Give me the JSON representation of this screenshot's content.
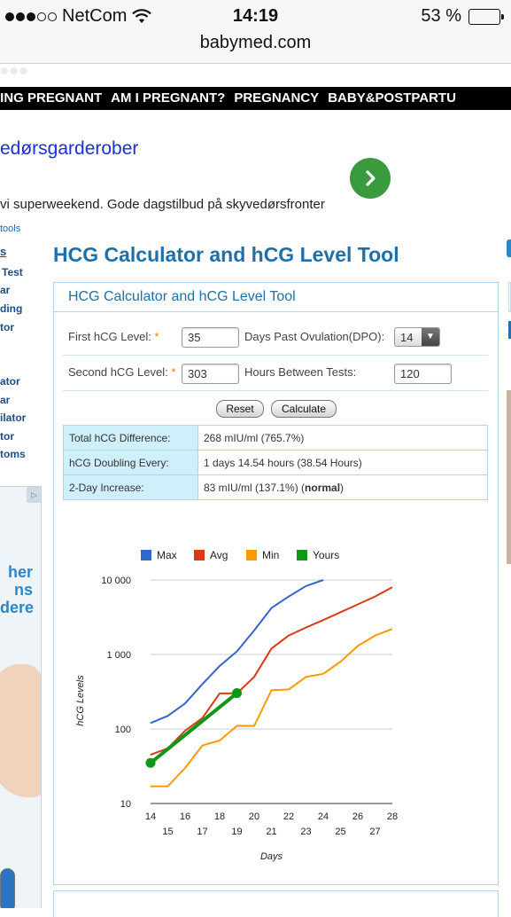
{
  "status": {
    "carrier": "NetCom",
    "time": "14:19",
    "battery": "53 %"
  },
  "browser": {
    "url": "babymed.com"
  },
  "nav": {
    "items": [
      "TING PREGNANT",
      "AM I PREGNANT?",
      "PREGNANCY",
      "BABY&POSTPARTU"
    ]
  },
  "ad": {
    "title": "edørsgarderober",
    "text": "vi superweekend. Gode dagstilbud på skyvedørsfronter",
    "arrow_icon": "chevron-right-icon"
  },
  "tools_link": "tools",
  "sidebar": {
    "head": "s",
    "items": [
      "Test",
      "ar",
      "ding",
      "tor",
      "ator",
      "ar",
      "ilator",
      "tor",
      "toms"
    ]
  },
  "left_ad": {
    "lines": [
      "her",
      "ns",
      "dere"
    ]
  },
  "page": {
    "title": "HCG Calculator and hCG Level Tool"
  },
  "calculator": {
    "header": "HCG Calculator and hCG Level Tool",
    "first_label": "First hCG Level:",
    "first_value": "35",
    "dpo_label": "Days Past Ovulation(DPO):",
    "dpo_value": "14",
    "second_label": "Second hCG Level:",
    "second_value": "303",
    "hours_label": "Hours Between Tests:",
    "hours_value": "120",
    "required_mark": "*",
    "reset_label": "Reset",
    "calculate_label": "Calculate"
  },
  "results": {
    "rows": [
      {
        "label": "Total hCG Difference:",
        "value": "268 mIU/ml (765.7%)"
      },
      {
        "label": "hCG Doubling Every:",
        "value": "1 days 14.54 hours (38.54 Hours)"
      },
      {
        "label": "2-Day Increase:",
        "value_prefix": "83 mIU/ml (137.1%) (",
        "value_bold": "normal",
        "value_suffix": ")"
      }
    ]
  },
  "colors": {
    "max": "#3366cc",
    "avg": "#dc3912",
    "min": "#ff9900",
    "yours": "#109618",
    "title_blue": "#1f6fa8"
  },
  "chart_data": {
    "type": "line",
    "xlabel": "Days",
    "ylabel": "hCG Levels",
    "log_scale_y": true,
    "ylim": [
      10,
      10000
    ],
    "xlim": [
      14,
      28
    ],
    "x_ticks": [
      "14",
      "15",
      "16",
      "17",
      "18",
      "19",
      "20",
      "21",
      "22",
      "23",
      "24",
      "25",
      "26",
      "27",
      "28"
    ],
    "y_ticks": [
      "10",
      "100",
      "1 000",
      "10 000"
    ],
    "grid": true,
    "legend_position": "top",
    "series": [
      {
        "name": "Max",
        "x": [
          14,
          15,
          16,
          17,
          18,
          19,
          20,
          21,
          22,
          23,
          24
        ],
        "values": [
          120,
          150,
          220,
          400,
          700,
          1100,
          2100,
          4200,
          6000,
          8300,
          10000
        ]
      },
      {
        "name": "Avg",
        "x": [
          14,
          15,
          16,
          17,
          18,
          19,
          20,
          21,
          22,
          23,
          24,
          25,
          26,
          27,
          28
        ],
        "values": [
          45,
          55,
          95,
          140,
          300,
          300,
          500,
          1200,
          1800,
          2300,
          2900,
          3700,
          4700,
          6000,
          8000
        ]
      },
      {
        "name": "Min",
        "x": [
          14,
          15,
          16,
          17,
          18,
          19,
          20,
          21,
          22,
          23,
          24,
          25,
          26,
          27,
          28
        ],
        "values": [
          17,
          17,
          30,
          60,
          70,
          110,
          110,
          330,
          340,
          500,
          550,
          800,
          1300,
          1800,
          2200
        ]
      },
      {
        "name": "Yours",
        "x": [
          14,
          19
        ],
        "values": [
          35,
          303
        ]
      }
    ]
  }
}
